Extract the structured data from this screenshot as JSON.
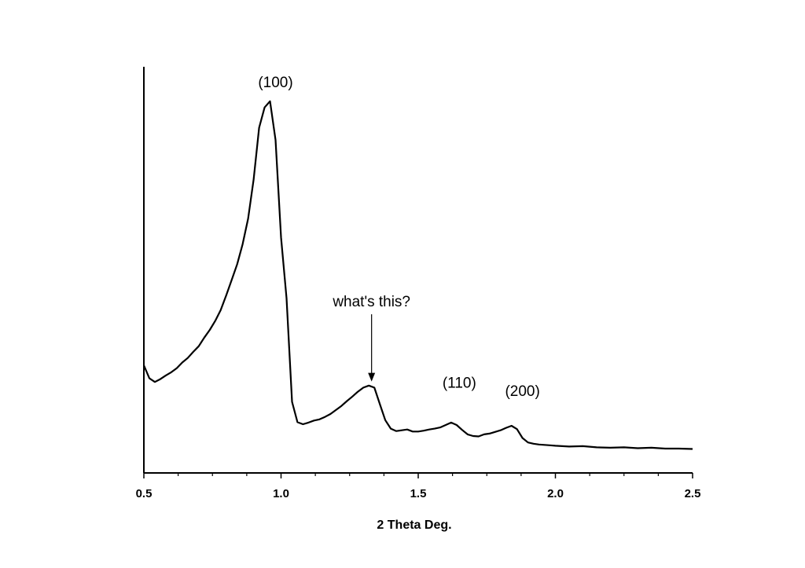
{
  "chart_data": {
    "type": "line",
    "title": "",
    "xlabel": "2 Theta Deg.",
    "ylabel": "",
    "xlim": [
      0.5,
      2.5
    ],
    "ylim": [
      0,
      100
    ],
    "x_ticks": [
      "0.5",
      "1.0",
      "1.5",
      "2.0",
      "2.5"
    ],
    "y_ticks_shown": false,
    "grid": false,
    "series": [
      {
        "color": "#000000",
        "x": [
          0.5,
          0.52,
          0.54,
          0.56,
          0.58,
          0.6,
          0.62,
          0.64,
          0.66,
          0.68,
          0.7,
          0.72,
          0.74,
          0.76,
          0.78,
          0.8,
          0.82,
          0.84,
          0.86,
          0.88,
          0.9,
          0.92,
          0.94,
          0.96,
          0.98,
          1.0,
          1.02,
          1.04,
          1.06,
          1.08,
          1.1,
          1.12,
          1.14,
          1.16,
          1.18,
          1.2,
          1.22,
          1.24,
          1.26,
          1.28,
          1.3,
          1.32,
          1.34,
          1.36,
          1.38,
          1.4,
          1.42,
          1.44,
          1.46,
          1.48,
          1.5,
          1.52,
          1.54,
          1.56,
          1.58,
          1.6,
          1.62,
          1.64,
          1.66,
          1.68,
          1.7,
          1.72,
          1.74,
          1.76,
          1.78,
          1.8,
          1.82,
          1.84,
          1.86,
          1.88,
          1.9,
          1.92,
          1.94,
          1.96,
          1.98,
          2.0,
          2.05,
          2.1,
          2.15,
          2.2,
          2.25,
          2.3,
          2.35,
          2.4,
          2.45,
          2.5
        ],
        "y": [
          26.5,
          23.3,
          22.4,
          23.1,
          24.0,
          24.8,
          25.8,
          27.2,
          28.3,
          29.8,
          31.2,
          33.3,
          35.2,
          37.4,
          40.1,
          43.7,
          47.5,
          51.4,
          56.3,
          62.6,
          72.2,
          85.0,
          90.0,
          91.5,
          82.0,
          58.0,
          43.0,
          17.5,
          12.5,
          12.0,
          12.4,
          12.9,
          13.2,
          13.8,
          14.5,
          15.5,
          16.5,
          17.7,
          18.8,
          20.0,
          21.0,
          21.5,
          21.0,
          17.0,
          13.0,
          10.9,
          10.3,
          10.5,
          10.7,
          10.2,
          10.2,
          10.4,
          10.7,
          10.9,
          11.2,
          11.8,
          12.4,
          11.8,
          10.6,
          9.5,
          9.1,
          9.0,
          9.5,
          9.7,
          10.1,
          10.5,
          11.1,
          11.6,
          10.8,
          8.6,
          7.5,
          7.2,
          7.0,
          6.9,
          6.8,
          6.7,
          6.5,
          6.6,
          6.3,
          6.2,
          6.3,
          6.1,
          6.2,
          6.0,
          6.0,
          5.9
        ]
      }
    ],
    "annotations": [
      {
        "text": "(100)",
        "x": 0.98,
        "y": 95.0
      },
      {
        "text": "what's this?",
        "x": 1.33,
        "y": 41.0,
        "arrow_to": [
          1.33,
          22.5
        ]
      },
      {
        "text": "(110)",
        "x": 1.65,
        "y": 21.0
      },
      {
        "text": "(200)",
        "x": 1.88,
        "y": 19.0
      }
    ]
  }
}
